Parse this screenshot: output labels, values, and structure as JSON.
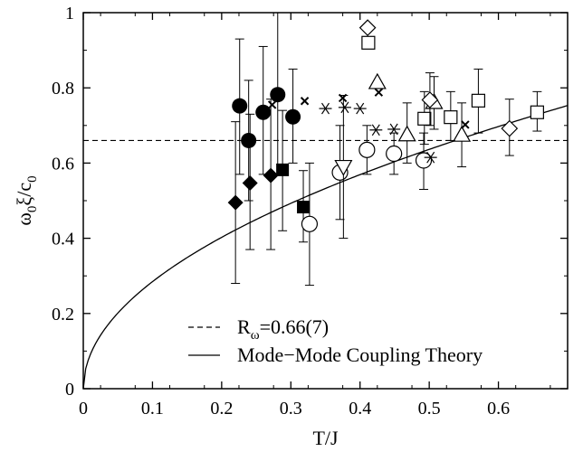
{
  "chart_data": {
    "type": "scatter",
    "xlabel": "T/J",
    "ylabel_main": "ω",
    "ylabel_sub1": "0",
    "ylabel_mid": "ξ/c",
    "ylabel_sub2": "0",
    "xlim": [
      0,
      0.7
    ],
    "ylim": [
      0,
      1
    ],
    "xticks": [
      "0",
      "0.1",
      "0.2",
      "0.3",
      "0.4",
      "0.5",
      "0.6"
    ],
    "xtick_values": [
      0,
      0.1,
      0.2,
      0.3,
      0.4,
      0.5,
      0.6
    ],
    "yticks": [
      "0",
      "0.2",
      "0.4",
      "0.6",
      "0.8",
      "1"
    ],
    "ytick_values": [
      0,
      0.2,
      0.4,
      0.6,
      0.8,
      1.0
    ],
    "grid": false,
    "legend_position": "bottom-left",
    "legend": [
      {
        "style": "dashed",
        "label_main": "R",
        "label_sub": "ω",
        "label_rest": "=0.66(7)"
      },
      {
        "style": "solid",
        "label_main": "Mode−Mode Coupling Theory",
        "label_sub": "",
        "label_rest": ""
      }
    ],
    "reference_line": {
      "y": 0.66
    },
    "theory_curve": {
      "coefficient": 0.9,
      "exponent": 0.5
    },
    "series": [
      {
        "marker": "filled-circle",
        "points": [
          {
            "x": 0.226,
            "y": 0.752,
            "ylo": 0.57,
            "yhi": 0.93
          },
          {
            "x": 0.239,
            "y": 0.66,
            "ylo": 0.5,
            "yhi": 0.82
          },
          {
            "x": 0.26,
            "y": 0.735,
            "ylo": 0.57,
            "yhi": 0.91
          },
          {
            "x": 0.281,
            "y": 0.782,
            "ylo": 0.57,
            "yhi": 1.0
          },
          {
            "x": 0.303,
            "y": 0.723,
            "ylo": 0.6,
            "yhi": 0.85
          }
        ]
      },
      {
        "marker": "filled-diamond",
        "points": [
          {
            "x": 0.22,
            "y": 0.495,
            "ylo": 0.28,
            "yhi": 0.71
          },
          {
            "x": 0.241,
            "y": 0.547,
            "ylo": 0.37,
            "yhi": 0.73
          },
          {
            "x": 0.271,
            "y": 0.567,
            "ylo": 0.37,
            "yhi": 0.77
          }
        ]
      },
      {
        "marker": "filled-square",
        "points": [
          {
            "x": 0.288,
            "y": 0.582,
            "ylo": 0.42,
            "yhi": 0.74
          },
          {
            "x": 0.318,
            "y": 0.483,
            "ylo": 0.39,
            "yhi": 0.58
          }
        ]
      },
      {
        "marker": "open-circle",
        "points": [
          {
            "x": 0.327,
            "y": 0.438,
            "ylo": 0.275,
            "yhi": 0.6
          },
          {
            "x": 0.371,
            "y": 0.575,
            "ylo": 0.45,
            "yhi": 0.7
          },
          {
            "x": 0.41,
            "y": 0.635,
            "ylo": 0.57,
            "yhi": 0.7
          },
          {
            "x": 0.449,
            "y": 0.625,
            "ylo": 0.57,
            "yhi": 0.68
          },
          {
            "x": 0.492,
            "y": 0.607,
            "ylo": 0.53,
            "yhi": 0.68
          }
        ]
      },
      {
        "marker": "open-triangle-down",
        "points": [
          {
            "x": 0.376,
            "y": 0.59,
            "ylo": 0.4,
            "yhi": 0.78
          }
        ]
      },
      {
        "marker": "open-triangle-up",
        "points": [
          {
            "x": 0.425,
            "y": 0.815,
            "ylo": 0.815,
            "yhi": 0.815
          },
          {
            "x": 0.468,
            "y": 0.676,
            "ylo": 0.6,
            "yhi": 0.76
          },
          {
            "x": 0.507,
            "y": 0.762,
            "ylo": 0.69,
            "yhi": 0.83
          },
          {
            "x": 0.547,
            "y": 0.675,
            "ylo": 0.59,
            "yhi": 0.76
          }
        ]
      },
      {
        "marker": "open-square",
        "points": [
          {
            "x": 0.412,
            "y": 0.92,
            "ylo": 0.92,
            "yhi": 0.92
          },
          {
            "x": 0.493,
            "y": 0.718,
            "ylo": 0.65,
            "yhi": 0.79
          },
          {
            "x": 0.531,
            "y": 0.722,
            "ylo": 0.66,
            "yhi": 0.79
          },
          {
            "x": 0.571,
            "y": 0.766,
            "ylo": 0.68,
            "yhi": 0.85
          },
          {
            "x": 0.656,
            "y": 0.735,
            "ylo": 0.685,
            "yhi": 0.79
          }
        ]
      },
      {
        "marker": "open-diamond",
        "points": [
          {
            "x": 0.411,
            "y": 0.96,
            "ylo": 0.96,
            "yhi": 0.96
          },
          {
            "x": 0.501,
            "y": 0.768,
            "ylo": 0.7,
            "yhi": 0.84
          },
          {
            "x": 0.616,
            "y": 0.692,
            "ylo": 0.62,
            "yhi": 0.77
          }
        ]
      },
      {
        "marker": "x-cross",
        "points": [
          {
            "x": 0.273,
            "y": 0.755,
            "ylo": 0.755,
            "yhi": 0.755
          },
          {
            "x": 0.32,
            "y": 0.765,
            "ylo": 0.765,
            "yhi": 0.765
          },
          {
            "x": 0.375,
            "y": 0.773,
            "ylo": 0.773,
            "yhi": 0.773
          },
          {
            "x": 0.427,
            "y": 0.788,
            "ylo": 0.788,
            "yhi": 0.788
          },
          {
            "x": 0.552,
            "y": 0.702,
            "ylo": 0.702,
            "yhi": 0.702
          }
        ]
      },
      {
        "marker": "asterisk",
        "points": [
          {
            "x": 0.35,
            "y": 0.745,
            "ylo": 0.745,
            "yhi": 0.745
          },
          {
            "x": 0.378,
            "y": 0.748,
            "ylo": 0.748,
            "yhi": 0.748
          },
          {
            "x": 0.4,
            "y": 0.745,
            "ylo": 0.745,
            "yhi": 0.745
          },
          {
            "x": 0.423,
            "y": 0.688,
            "ylo": 0.688,
            "yhi": 0.688
          },
          {
            "x": 0.449,
            "y": 0.69,
            "ylo": 0.69,
            "yhi": 0.69
          },
          {
            "x": 0.502,
            "y": 0.615,
            "ylo": 0.615,
            "yhi": 0.615
          }
        ]
      }
    ]
  }
}
